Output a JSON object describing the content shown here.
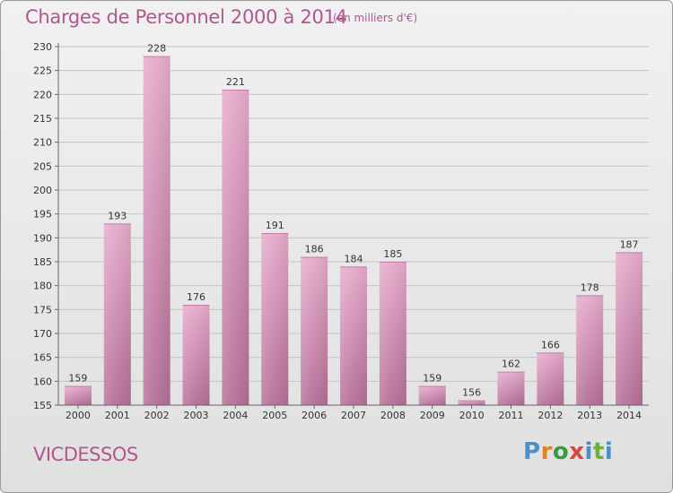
{
  "header": {
    "title": "Charges de Personnel 2000 à 2014",
    "subtitle": "(en milliers d'€)"
  },
  "footer": {
    "commune": "VICDESSOS",
    "logo": "Proxiti"
  },
  "colors": {
    "bar_top": "#e6aacb",
    "bar_bottom": "#b46e96",
    "text_accent": "#b0578f"
  },
  "chart_data": {
    "type": "bar",
    "title": "Charges de Personnel 2000 à 2014",
    "subtitle": "(en milliers d'€)",
    "categories": [
      "2000",
      "2001",
      "2002",
      "2003",
      "2004",
      "2005",
      "2006",
      "2007",
      "2008",
      "2009",
      "2010",
      "2011",
      "2012",
      "2013",
      "2014"
    ],
    "values": [
      159,
      193,
      228,
      176,
      221,
      191,
      186,
      184,
      185,
      159,
      156,
      162,
      166,
      178,
      187
    ],
    "ylim": [
      155,
      230
    ],
    "yticks": [
      155,
      160,
      165,
      170,
      175,
      180,
      185,
      190,
      195,
      200,
      205,
      210,
      215,
      220,
      225,
      230
    ],
    "grid": true
  }
}
